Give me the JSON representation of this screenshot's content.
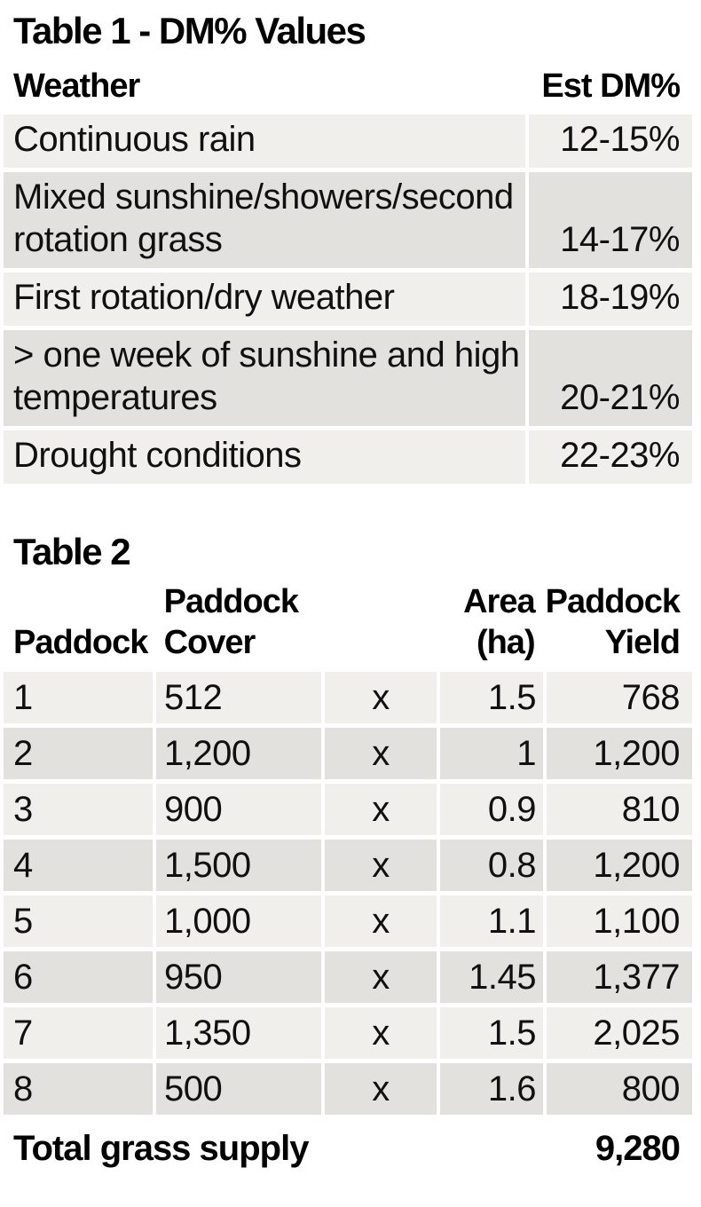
{
  "colors": {
    "background": "#ffffff",
    "row_light": "#f0efeb",
    "row_dark": "#e2e1dd",
    "text": "#101010"
  },
  "table1": {
    "title": "Table 1 - DM% Values",
    "columns": {
      "weather": "Weather",
      "est_dm": "Est DM%"
    },
    "rows": [
      {
        "weather": "Continuous rain",
        "est_dm": "12-15%"
      },
      {
        "weather": "Mixed sunshine/showers/second\nrotation grass",
        "est_dm": "14-17%"
      },
      {
        "weather": "First rotation/dry weather",
        "est_dm": "18-19%"
      },
      {
        "weather": "> one week of sunshine and high\ntemperatures",
        "est_dm": "20-21%"
      },
      {
        "weather": "Drought conditions",
        "est_dm": "22-23%"
      }
    ]
  },
  "table2": {
    "title": "Table 2",
    "columns": {
      "paddock": "Paddock",
      "cover": "Paddock\nCover",
      "op": "",
      "area": "Area\n(ha)",
      "yield": "Paddock\nYield"
    },
    "rows": [
      {
        "paddock": "1",
        "cover": "512",
        "op": "x",
        "area": "1.5",
        "yield": "768"
      },
      {
        "paddock": "2",
        "cover": "1,200",
        "op": "x",
        "area": "1",
        "yield": "1,200"
      },
      {
        "paddock": "3",
        "cover": "900",
        "op": "x",
        "area": "0.9",
        "yield": "810"
      },
      {
        "paddock": "4",
        "cover": "1,500",
        "op": "x",
        "area": "0.8",
        "yield": "1,200"
      },
      {
        "paddock": "5",
        "cover": "1,000",
        "op": "x",
        "area": "1.1",
        "yield": "1,100"
      },
      {
        "paddock": "6",
        "cover": "950",
        "op": "x",
        "area": "1.45",
        "yield": "1,377"
      },
      {
        "paddock": "7",
        "cover": "1,350",
        "op": "x",
        "area": "1.5",
        "yield": "2,025"
      },
      {
        "paddock": "8",
        "cover": "500",
        "op": "x",
        "area": "1.6",
        "yield": "800"
      }
    ],
    "total": {
      "label": "Total grass supply",
      "value": "9,280"
    }
  }
}
